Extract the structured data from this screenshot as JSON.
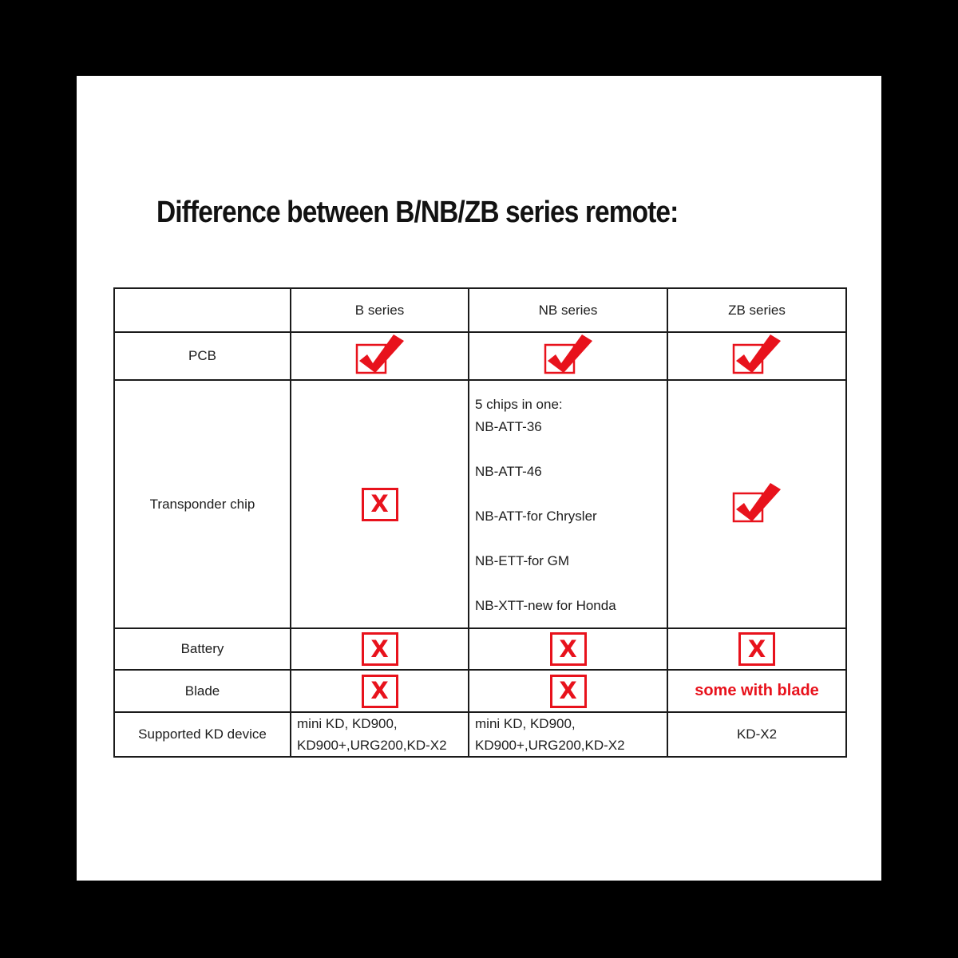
{
  "title": "Difference between B/NB/ZB series remote:",
  "colors": {
    "red": "#e8121c",
    "line": "#1b1b1b",
    "text": "#1d1d1d",
    "background": "#000000",
    "paper": "#ffffff"
  },
  "icons": {
    "check": "check-icon",
    "cross": "cross-icon",
    "cross_glyph": "X"
  },
  "table": {
    "columns": [
      "",
      "B series",
      "NB series",
      "ZB series"
    ],
    "rows": [
      {
        "label": "PCB",
        "cells": [
          {
            "type": "check"
          },
          {
            "type": "check"
          },
          {
            "type": "check"
          }
        ]
      },
      {
        "label": "Transponder chip",
        "cells": [
          {
            "type": "cross"
          },
          {
            "type": "chip-list",
            "lines": [
              "5 chips in one:",
              "NB-ATT-36",
              "NB-ATT-46",
              "NB-ATT-for Chrysler",
              "NB-ETT-for GM",
              "NB-XTT-new for Honda"
            ]
          },
          {
            "type": "check"
          }
        ]
      },
      {
        "label": "Battery",
        "cells": [
          {
            "type": "cross"
          },
          {
            "type": "cross"
          },
          {
            "type": "cross"
          }
        ]
      },
      {
        "label": "Blade",
        "cells": [
          {
            "type": "cross"
          },
          {
            "type": "cross"
          },
          {
            "type": "text-red",
            "text": "some with blade"
          }
        ]
      },
      {
        "label": "Supported KD device",
        "cells": [
          {
            "type": "lines",
            "lines": [
              "mini KD, KD900,",
              "KD900+,URG200,KD-X2"
            ]
          },
          {
            "type": "lines",
            "lines": [
              "mini KD, KD900,",
              "KD900+,URG200,KD-X2"
            ]
          },
          {
            "type": "text",
            "text": "KD-X2"
          }
        ]
      }
    ]
  }
}
